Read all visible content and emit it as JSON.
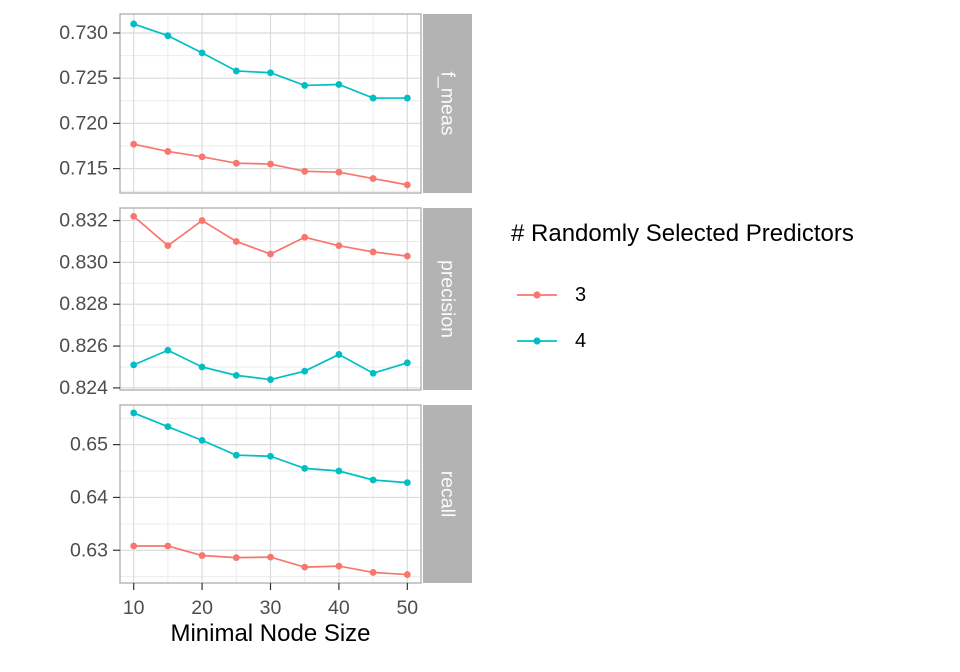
{
  "theme": {
    "panel_bg": "#FFFFFF",
    "panel_border": "#ADADAD",
    "grid_major": "#DBDBDB",
    "grid_minor": "#EBEBEB",
    "strip_fill": "#B3B3B3",
    "strip_text": "#FAFAFA",
    "tick_mark": "#333333",
    "tick_label": "#4D4D4D",
    "series_3": "#F8766D",
    "series_4": "#00BFC4"
  },
  "chart_data": {
    "type": "line",
    "title": "",
    "xlabel": "Minimal Node Size",
    "ylabel": "",
    "x": [
      10,
      15,
      20,
      25,
      30,
      35,
      40,
      45,
      50
    ],
    "xlim": [
      8,
      52
    ],
    "x_ticks": [
      10,
      20,
      30,
      40,
      50
    ],
    "x_tick_labels": [
      "10",
      "20",
      "30",
      "40",
      "50"
    ],
    "x_minor": [
      15,
      25,
      35,
      45
    ],
    "grid": "on",
    "legend": {
      "title": "# Randomly Selected Predictors",
      "position": "right",
      "entries": [
        {
          "label": "3",
          "color": "#F8766D"
        },
        {
          "label": "4",
          "color": "#00BFC4"
        }
      ]
    },
    "facets": [
      {
        "label": "f_meas",
        "ylim": [
          0.7123,
          0.7321
        ],
        "yticks": [
          0.715,
          0.72,
          0.725,
          0.73
        ],
        "ytick_labels": [
          "0.715",
          "0.720",
          "0.725",
          "0.730"
        ],
        "yminor": [
          0.7125,
          0.7175,
          0.7225,
          0.7275
        ],
        "series": [
          {
            "name": "3",
            "color": "#F8766D",
            "values": [
              0.7177,
              0.7169,
              0.7163,
              0.7156,
              0.7155,
              0.7147,
              0.7146,
              0.7139,
              0.7132
            ]
          },
          {
            "name": "4",
            "color": "#00BFC4",
            "values": [
              0.731,
              0.7297,
              0.7278,
              0.7258,
              0.7256,
              0.7242,
              0.7243,
              0.7228,
              0.7228
            ]
          }
        ]
      },
      {
        "label": "precision",
        "ylim": [
          0.8239,
          0.8326
        ],
        "yticks": [
          0.824,
          0.826,
          0.828,
          0.83,
          0.832
        ],
        "ytick_labels": [
          "0.824",
          "0.826",
          "0.828",
          "0.830",
          "0.832"
        ],
        "yminor": [
          0.825,
          0.827,
          0.829,
          0.831
        ],
        "series": [
          {
            "name": "3",
            "color": "#F8766D",
            "values": [
              0.8322,
              0.8308,
              0.832,
              0.831,
              0.8304,
              0.8312,
              0.8308,
              0.8305,
              0.8303
            ]
          },
          {
            "name": "4",
            "color": "#00BFC4",
            "values": [
              0.8251,
              0.8258,
              0.825,
              0.8246,
              0.8244,
              0.8248,
              0.8256,
              0.8247,
              0.8252
            ]
          }
        ]
      },
      {
        "label": "recall",
        "ylim": [
          0.6238,
          0.6575
        ],
        "yticks": [
          0.63,
          0.64,
          0.65
        ],
        "ytick_labels": [
          "0.63",
          "0.64",
          "0.65"
        ],
        "yminor": [
          0.625,
          0.635,
          0.645,
          0.655
        ],
        "series": [
          {
            "name": "3",
            "color": "#F8766D",
            "values": [
              0.6308,
              0.6308,
              0.629,
              0.6286,
              0.6287,
              0.6268,
              0.627,
              0.6258,
              0.6254
            ]
          },
          {
            "name": "4",
            "color": "#00BFC4",
            "values": [
              0.656,
              0.6534,
              0.6508,
              0.648,
              0.6478,
              0.6455,
              0.645,
              0.6433,
              0.6428
            ]
          }
        ]
      }
    ]
  }
}
